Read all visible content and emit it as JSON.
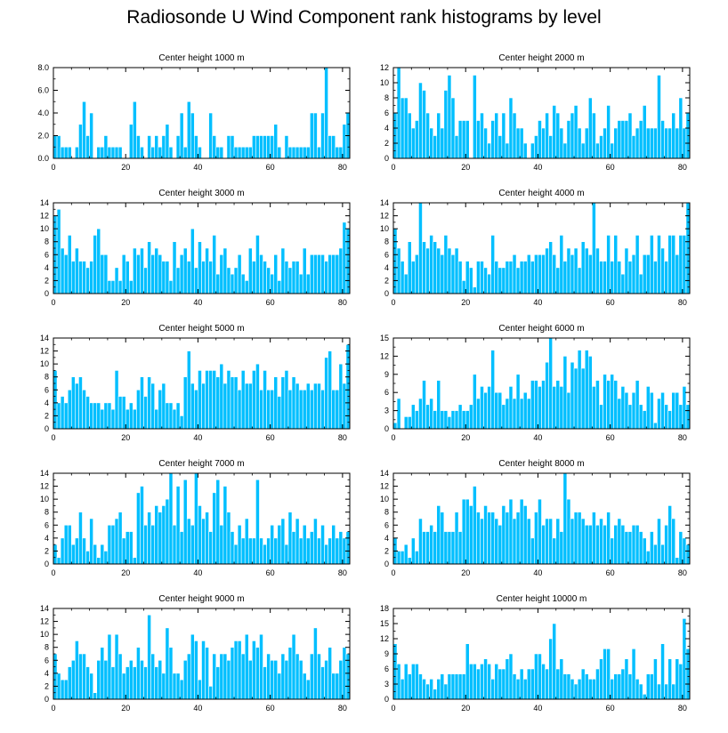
{
  "title": "Radiosonde U Wind Component rank histograms by level",
  "bar_color": "#00BFFF",
  "chart_data": [
    {
      "type": "bar",
      "title": "Center height 1000 m",
      "xlim": [
        0,
        82
      ],
      "ylim": [
        0,
        8
      ],
      "xticks": [
        0,
        20,
        40,
        60,
        80
      ],
      "yticks": [
        0,
        2,
        4,
        6,
        8
      ],
      "ytick_labels": [
        "0.0",
        "2.0",
        "4.0",
        "6.0",
        "8.0"
      ],
      "values": [
        2,
        2,
        1,
        1,
        1,
        0,
        1,
        3,
        5,
        2,
        4,
        0,
        1,
        1,
        2,
        1,
        1,
        1,
        1,
        0,
        0,
        3,
        5,
        2,
        1,
        0,
        2,
        1,
        2,
        1,
        2,
        3,
        1,
        0,
        2,
        4,
        1,
        5,
        4,
        2,
        1,
        0,
        0,
        4,
        2,
        1,
        1,
        0,
        2,
        2,
        1,
        1,
        1,
        1,
        1,
        2,
        2,
        2,
        2,
        2,
        2,
        3,
        1,
        0,
        2,
        1,
        1,
        1,
        1,
        1,
        1,
        4,
        4,
        1,
        4,
        8,
        2,
        2,
        1,
        1,
        3,
        4
      ]
    },
    {
      "type": "bar",
      "title": "Center height 2000 m",
      "xlim": [
        0,
        82
      ],
      "ylim": [
        0,
        12
      ],
      "xticks": [
        0,
        20,
        40,
        60,
        80
      ],
      "yticks": [
        0,
        2,
        4,
        6,
        8,
        10,
        12
      ],
      "ytick_labels": [
        "0",
        "2",
        "4",
        "6",
        "8",
        "10",
        "12"
      ],
      "values": [
        6,
        12,
        8,
        8,
        6,
        4,
        5,
        10,
        9,
        6,
        4,
        3,
        6,
        4,
        9,
        11,
        8,
        3,
        5,
        5,
        5,
        0,
        11,
        5,
        6,
        4,
        2,
        5,
        6,
        3,
        6,
        2,
        8,
        6,
        4,
        4,
        2,
        0,
        2,
        3,
        5,
        4,
        6,
        3,
        7,
        6,
        4,
        2,
        5,
        6,
        7,
        4,
        2,
        4,
        8,
        6,
        2,
        3,
        4,
        7,
        2,
        4,
        5,
        5,
        5,
        6,
        3,
        4,
        5,
        7,
        4,
        4,
        4,
        11,
        5,
        4,
        4,
        6,
        4,
        8,
        4,
        6
      ]
    },
    {
      "type": "bar",
      "title": "Center height 3000 m",
      "xlim": [
        0,
        82
      ],
      "ylim": [
        0,
        14
      ],
      "xticks": [
        0,
        20,
        40,
        60,
        80
      ],
      "yticks": [
        0,
        2,
        4,
        6,
        8,
        10,
        12,
        14
      ],
      "ytick_labels": [
        "0",
        "2",
        "4",
        "6",
        "8",
        "10",
        "12",
        "14"
      ],
      "values": [
        12,
        13,
        7,
        6,
        9,
        5,
        7,
        5,
        5,
        4,
        5,
        9,
        10,
        6,
        6,
        2,
        2,
        4,
        2,
        6,
        5,
        2,
        7,
        6,
        7,
        4,
        8,
        6,
        7,
        6,
        5,
        5,
        2,
        8,
        4,
        6,
        7,
        5,
        10,
        4,
        8,
        5,
        7,
        5,
        9,
        3,
        6,
        7,
        4,
        3,
        4,
        6,
        3,
        2,
        7,
        5,
        9,
        6,
        5,
        4,
        3,
        6,
        2,
        7,
        5,
        4,
        5,
        5,
        3,
        7,
        3,
        6,
        6,
        6,
        6,
        5,
        6,
        6,
        6,
        7,
        11,
        10
      ]
    },
    {
      "type": "bar",
      "title": "Center height 4000 m",
      "xlim": [
        0,
        82
      ],
      "ylim": [
        0,
        14
      ],
      "xticks": [
        0,
        20,
        40,
        60,
        80
      ],
      "yticks": [
        0,
        2,
        4,
        6,
        8,
        10,
        12,
        14
      ],
      "ytick_labels": [
        "0",
        "2",
        "4",
        "6",
        "8",
        "10",
        "12",
        "14"
      ],
      "values": [
        10,
        7,
        5,
        3,
        8,
        5,
        6,
        14,
        8,
        7,
        9,
        8,
        7,
        6,
        9,
        7,
        6,
        7,
        5,
        2,
        5,
        4,
        1,
        5,
        5,
        4,
        3,
        9,
        5,
        4,
        4,
        5,
        5,
        6,
        4,
        5,
        5,
        6,
        5,
        6,
        6,
        6,
        7,
        8,
        6,
        4,
        9,
        5,
        7,
        6,
        7,
        4,
        8,
        7,
        6,
        14,
        7,
        5,
        5,
        9,
        5,
        9,
        5,
        3,
        7,
        5,
        6,
        9,
        3,
        6,
        6,
        9,
        5,
        9,
        7,
        5,
        9,
        9,
        6,
        9,
        9,
        14
      ]
    },
    {
      "type": "bar",
      "title": "Center height 5000 m",
      "xlim": [
        0,
        82
      ],
      "ylim": [
        0,
        14
      ],
      "xticks": [
        0,
        20,
        40,
        60,
        80
      ],
      "yticks": [
        0,
        2,
        4,
        6,
        8,
        10,
        12,
        14
      ],
      "ytick_labels": [
        "0",
        "2",
        "4",
        "6",
        "8",
        "10",
        "12",
        "14"
      ],
      "values": [
        9,
        4,
        5,
        4,
        6,
        8,
        7,
        8,
        6,
        5,
        4,
        4,
        4,
        3,
        4,
        4,
        3,
        9,
        5,
        5,
        3,
        4,
        3,
        6,
        8,
        5,
        8,
        7,
        3,
        6,
        7,
        4,
        4,
        3,
        4,
        2,
        8,
        12,
        7,
        6,
        9,
        7,
        9,
        9,
        9,
        8,
        10,
        7,
        9,
        8,
        8,
        6,
        9,
        7,
        7,
        9,
        10,
        6,
        9,
        6,
        6,
        8,
        5,
        8,
        9,
        6,
        8,
        7,
        6,
        6,
        7,
        6,
        7,
        7,
        6,
        11,
        12,
        6,
        6,
        10,
        7,
        13
      ]
    },
    {
      "type": "bar",
      "title": "Center height 6000 m",
      "xlim": [
        0,
        82
      ],
      "ylim": [
        0,
        15
      ],
      "xticks": [
        0,
        20,
        40,
        60,
        80
      ],
      "yticks": [
        0,
        3,
        6,
        9,
        12,
        15
      ],
      "ytick_labels": [
        "0",
        "3",
        "6",
        "9",
        "12",
        "15"
      ],
      "values": [
        1,
        5,
        0,
        2,
        2,
        4,
        3,
        5,
        8,
        4,
        5,
        3,
        8,
        3,
        3,
        2,
        3,
        3,
        4,
        3,
        3,
        4,
        9,
        5,
        7,
        6,
        7,
        13,
        6,
        6,
        4,
        5,
        7,
        5,
        9,
        5,
        6,
        5,
        8,
        8,
        7,
        8,
        11,
        15,
        7,
        8,
        7,
        12,
        6,
        11,
        10,
        13,
        10,
        13,
        12,
        7,
        8,
        4,
        9,
        8,
        9,
        8,
        5,
        7,
        6,
        4,
        6,
        8,
        4,
        3,
        7,
        6,
        1,
        5,
        6,
        4,
        3,
        6,
        6,
        4,
        7,
        4
      ]
    },
    {
      "type": "bar",
      "title": "Center height 7000 m",
      "xlim": [
        0,
        82
      ],
      "ylim": [
        0,
        14
      ],
      "xticks": [
        0,
        20,
        40,
        60,
        80
      ],
      "yticks": [
        0,
        2,
        4,
        6,
        8,
        10,
        12,
        14
      ],
      "ytick_labels": [
        "0",
        "2",
        "4",
        "6",
        "8",
        "10",
        "12",
        "14"
      ],
      "values": [
        3,
        1,
        4,
        6,
        6,
        3,
        4,
        8,
        4,
        2,
        7,
        3,
        1,
        3,
        2,
        6,
        6,
        7,
        8,
        4,
        5,
        5,
        1,
        11,
        12,
        6,
        8,
        6,
        9,
        8,
        9,
        10,
        14,
        6,
        12,
        5,
        13,
        7,
        6,
        14,
        9,
        7,
        8,
        5,
        11,
        13,
        6,
        12,
        8,
        5,
        3,
        6,
        4,
        7,
        4,
        4,
        13,
        4,
        3,
        4,
        6,
        4,
        6,
        7,
        3,
        8,
        5,
        7,
        4,
        6,
        4,
        5,
        7,
        4,
        6,
        3,
        4,
        6,
        4,
        5,
        4,
        5
      ]
    },
    {
      "type": "bar",
      "title": "Center height 8000 m",
      "xlim": [
        0,
        82
      ],
      "ylim": [
        0,
        14
      ],
      "xticks": [
        0,
        20,
        40,
        60,
        80
      ],
      "yticks": [
        0,
        2,
        4,
        6,
        8,
        10,
        12,
        14
      ],
      "ytick_labels": [
        "0",
        "2",
        "4",
        "6",
        "8",
        "10",
        "12",
        "14"
      ],
      "values": [
        4,
        2,
        2,
        3,
        1,
        4,
        2,
        7,
        5,
        5,
        6,
        5,
        9,
        8,
        5,
        5,
        5,
        8,
        5,
        10,
        10,
        9,
        12,
        8,
        7,
        9,
        8,
        8,
        7,
        6,
        9,
        8,
        10,
        7,
        8,
        10,
        9,
        7,
        4,
        8,
        10,
        6,
        7,
        7,
        4,
        7,
        5,
        14,
        10,
        7,
        8,
        8,
        7,
        6,
        6,
        8,
        6,
        7,
        6,
        8,
        4,
        6,
        7,
        6,
        5,
        5,
        6,
        6,
        5,
        4,
        2,
        5,
        3,
        7,
        3,
        6,
        9,
        7,
        1,
        5,
        4,
        3
      ]
    },
    {
      "type": "bar",
      "title": "Center height 9000 m",
      "xlim": [
        0,
        82
      ],
      "ylim": [
        0,
        14
      ],
      "xticks": [
        0,
        20,
        40,
        60,
        80
      ],
      "yticks": [
        0,
        2,
        4,
        6,
        8,
        10,
        12,
        14
      ],
      "ytick_labels": [
        "0",
        "2",
        "4",
        "6",
        "8",
        "10",
        "12",
        "14"
      ],
      "values": [
        7,
        4,
        3,
        3,
        5,
        6,
        9,
        7,
        7,
        5,
        4,
        1,
        6,
        8,
        6,
        10,
        5,
        10,
        7,
        4,
        5,
        6,
        5,
        8,
        6,
        5,
        13,
        7,
        5,
        6,
        4,
        11,
        8,
        4,
        4,
        3,
        6,
        7,
        10,
        9,
        3,
        9,
        8,
        2,
        7,
        5,
        7,
        7,
        6,
        8,
        9,
        9,
        7,
        10,
        6,
        9,
        8,
        10,
        5,
        7,
        6,
        6,
        4,
        7,
        6,
        8,
        10,
        7,
        6,
        4,
        3,
        7,
        11,
        7,
        5,
        6,
        8,
        4,
        4,
        6,
        8,
        7
      ]
    },
    {
      "type": "bar",
      "title": "Center height 10000 m",
      "xlim": [
        0,
        82
      ],
      "ylim": [
        0,
        18
      ],
      "xticks": [
        0,
        20,
        40,
        60,
        80
      ],
      "yticks": [
        0,
        3,
        6,
        9,
        12,
        15,
        18
      ],
      "ytick_labels": [
        "0",
        "3",
        "6",
        "9",
        "12",
        "15",
        "18"
      ],
      "values": [
        11,
        7,
        4,
        7,
        5,
        7,
        7,
        5,
        4,
        3,
        4,
        2,
        4,
        5,
        3,
        5,
        5,
        5,
        5,
        5,
        11,
        7,
        7,
        6,
        7,
        8,
        7,
        4,
        7,
        6,
        6,
        8,
        9,
        5,
        4,
        6,
        4,
        6,
        6,
        9,
        9,
        7,
        6,
        12,
        15,
        6,
        8,
        5,
        5,
        4,
        3,
        4,
        6,
        5,
        4,
        4,
        6,
        8,
        10,
        10,
        4,
        5,
        5,
        6,
        8,
        5,
        10,
        4,
        3,
        1,
        5,
        5,
        8,
        3,
        11,
        3,
        8,
        3,
        8,
        7,
        16,
        10
      ]
    }
  ]
}
